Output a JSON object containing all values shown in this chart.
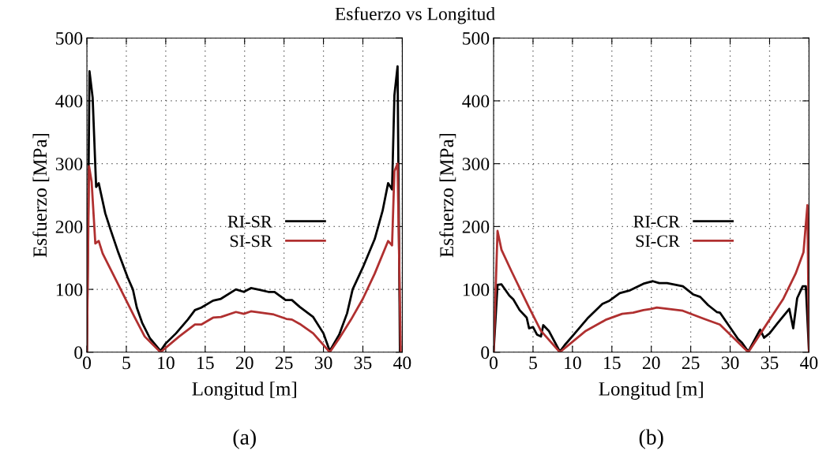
{
  "chart_data": [
    {
      "type": "line",
      "title": "Esfuerzo vs Longitud",
      "xlabel": "Longitud [m]",
      "ylabel": "Esfuerzo [MPa]",
      "annotations": [
        "(a)"
      ],
      "xlim": [
        0,
        40
      ],
      "ylim": [
        0,
        500
      ],
      "xticks": [
        0,
        5,
        10,
        15,
        20,
        25,
        30,
        35,
        40
      ],
      "yticks": [
        0,
        100,
        200,
        300,
        400,
        500
      ],
      "grid": true,
      "legend": "center",
      "line_style": "solid",
      "marker": "none",
      "series": [
        {
          "name": "RI-SR",
          "color": "#000000",
          "x": [
            0,
            0.33,
            0.73,
            1.17,
            1.5,
            2.33,
            3,
            4,
            5.17,
            5.83,
            6.33,
            7,
            8,
            9.33,
            10,
            11.3,
            12.8,
            13.7,
            14.5,
            16,
            17,
            18.9,
            19.9,
            20.8,
            22,
            23,
            23.8,
            25.2,
            26,
            27,
            28.7,
            30,
            30.8,
            32,
            33,
            33.7,
            35,
            36.5,
            37.5,
            38.2,
            38.7,
            39,
            39.4,
            39.7
          ],
          "values": [
            0,
            447,
            405,
            263,
            269,
            221,
            195,
            158,
            119,
            100,
            71,
            47,
            22,
            2,
            14,
            30,
            52,
            67,
            71,
            82,
            85,
            100,
            96,
            102,
            99,
            96,
            96,
            83,
            83,
            72,
            56,
            30,
            2,
            28,
            62,
            100,
            135,
            180,
            225,
            269,
            259,
            409,
            455,
            0
          ]
        },
        {
          "name": "SI-SR",
          "color": "#b03030",
          "x": [
            0,
            0.27,
            0.6,
            1.07,
            1.5,
            2,
            4,
            6,
            7.33,
            9.33,
            11.7,
            13.7,
            14.5,
            16,
            17,
            18.9,
            19.9,
            20.8,
            23.7,
            25.3,
            26,
            27,
            28.7,
            30.8,
            32,
            33.5,
            35,
            36.5,
            38.2,
            38.7,
            39,
            39.4,
            39.8
          ],
          "values": [
            0,
            296,
            271,
            173,
            177,
            157,
            107,
            57,
            25,
            0,
            25,
            44,
            44,
            55,
            56,
            64,
            61,
            65,
            60,
            53,
            52,
            45,
            30,
            0,
            22,
            52,
            85,
            125,
            177,
            170,
            288,
            300,
            0
          ]
        }
      ]
    },
    {
      "type": "line",
      "xlabel": "Longitud [m]",
      "ylabel": "Esfuerzo [MPa]",
      "annotations": [
        "(b)"
      ],
      "xlim": [
        0,
        40
      ],
      "ylim": [
        0,
        500
      ],
      "xticks": [
        0,
        5,
        10,
        15,
        20,
        25,
        30,
        35,
        40
      ],
      "yticks": [
        0,
        100,
        200,
        300,
        400,
        500
      ],
      "grid": true,
      "legend": "center",
      "line_style": "solid",
      "marker": "none",
      "series": [
        {
          "name": "RI-CR",
          "color": "#000000",
          "x": [
            0,
            0.5,
            1,
            2,
            2.5,
            3.3,
            4.2,
            4.5,
            5,
            5.5,
            6,
            6.3,
            7,
            8.4,
            9,
            10.3,
            12,
            13.8,
            14.7,
            16,
            17.2,
            19,
            20.2,
            21,
            22,
            24,
            25.3,
            26.2,
            27.2,
            28.3,
            28.7,
            31,
            31.5,
            32.3,
            33.8,
            34.3,
            35,
            36,
            37.5,
            38,
            38.5,
            39.2,
            39.6,
            40
          ],
          "values": [
            0,
            107,
            108,
            90,
            84,
            67,
            55,
            38,
            40,
            28,
            25,
            43,
            34,
            1,
            11,
            30,
            55,
            77,
            82,
            94,
            98,
            109,
            113,
            110,
            110,
            105,
            92,
            88,
            75,
            64,
            63,
            21,
            15,
            1,
            36,
            23,
            30,
            46,
            69,
            38,
            86,
            105,
            105,
            0
          ]
        },
        {
          "name": "SI-CR",
          "color": "#b03030",
          "x": [
            0,
            0.5,
            1,
            2.3,
            4.5,
            6,
            8.4,
            11.7,
            14.3,
            16.3,
            17.7,
            19,
            20,
            20.7,
            24,
            26.7,
            28.7,
            32.3,
            34.7,
            36.7,
            38.3,
            39.3,
            39.8,
            40
          ],
          "values": [
            0,
            193,
            163,
            128,
            71,
            34,
            0,
            34,
            52,
            61,
            63,
            67,
            69,
            71,
            66,
            53,
            44,
            0,
            46,
            84,
            125,
            159,
            234,
            0
          ]
        }
      ]
    }
  ]
}
